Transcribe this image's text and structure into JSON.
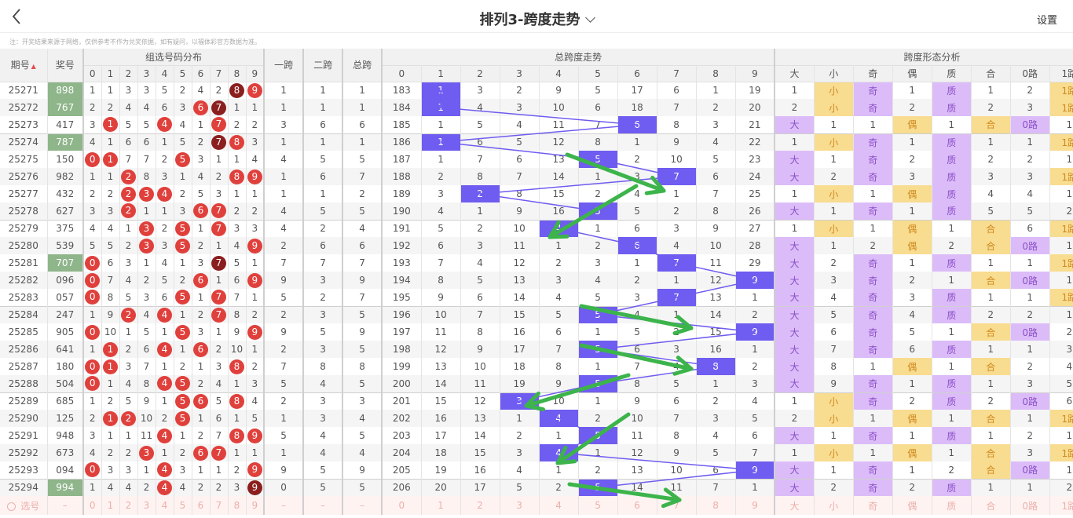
{
  "header": {
    "title": "排列3-跨度走势",
    "settings": "设置",
    "note": "注：开奖结果来源于网络，仅供参考不作为兑奖依据，如有疑问，以福体彩官方数据为准。"
  },
  "columns": {
    "issue": "期号",
    "award": "奖号",
    "dist_group": "组选号码分布",
    "span1": "一跨",
    "span2": "二跨",
    "span": "总跨",
    "trend_group": "总跨度走势",
    "form_group": "跨度形态分析",
    "digits": [
      "0",
      "1",
      "2",
      "3",
      "4",
      "5",
      "6",
      "7",
      "8",
      "9"
    ],
    "forms": [
      "大",
      "小",
      "奇",
      "偶",
      "质",
      "合",
      "0路",
      "1路"
    ]
  },
  "colors": {
    "hit": "#6f5cf0",
    "ball": "#e0403c",
    "ball_double": "#8b1e1e",
    "group3_award": "#8fb58a",
    "form_purple": "#dcbcf8",
    "form_yellow": "#f8dc90",
    "annotation": "#3cb44b"
  },
  "rows": [
    {
      "issue": "25271",
      "award": "898",
      "dist": [
        1,
        1,
        3,
        3,
        5,
        2,
        4,
        2,
        8,
        9
      ],
      "s1": 1,
      "s2": 1,
      "s": 1,
      "trend": [
        183,
        1,
        3,
        2,
        9,
        5,
        17,
        6,
        1,
        19
      ],
      "form": [
        "1",
        "小",
        "奇",
        "1",
        "质",
        "1",
        "2",
        "1路"
      ]
    },
    {
      "issue": "25272",
      "award": "767",
      "dist": [
        2,
        2,
        4,
        4,
        6,
        3,
        6,
        7,
        1,
        1
      ],
      "s1": 1,
      "s2": 1,
      "s": 1,
      "trend": [
        184,
        1,
        4,
        3,
        10,
        6,
        18,
        7,
        2,
        20
      ],
      "form": [
        "2",
        "小",
        "奇",
        "2",
        "质",
        "2",
        "3",
        "1路"
      ]
    },
    {
      "issue": "25273",
      "award": "417",
      "dist": [
        3,
        1,
        5,
        5,
        4,
        4,
        1,
        7,
        2,
        2
      ],
      "s1": 3,
      "s2": 6,
      "s": 6,
      "trend": [
        185,
        1,
        5,
        4,
        11,
        7,
        6,
        8,
        3,
        21
      ],
      "form": [
        "大",
        "1",
        "1",
        "偶",
        "1",
        "合",
        "0路",
        "1"
      ]
    },
    {
      "issue": "25274",
      "award": "787",
      "dist": [
        4,
        1,
        6,
        6,
        1,
        5,
        2,
        7,
        8,
        3
      ],
      "s1": 1,
      "s2": 1,
      "s": 1,
      "trend": [
        186,
        1,
        6,
        5,
        12,
        8,
        1,
        9,
        4,
        22
      ],
      "form": [
        "1",
        "小",
        "奇",
        "1",
        "质",
        "1",
        "1",
        "1路"
      ]
    },
    {
      "issue": "25275",
      "award": "150",
      "dist": [
        0,
        1,
        7,
        7,
        2,
        5,
        3,
        1,
        1,
        4
      ],
      "s1": 4,
      "s2": 5,
      "s": 5,
      "trend": [
        187,
        1,
        7,
        6,
        13,
        5,
        2,
        10,
        5,
        23
      ],
      "form": [
        "大",
        "1",
        "奇",
        "2",
        "质",
        "2",
        "2",
        "1"
      ]
    },
    {
      "issue": "25276",
      "award": "982",
      "dist": [
        1,
        1,
        2,
        8,
        3,
        1,
        4,
        2,
        8,
        9
      ],
      "s1": 1,
      "s2": 6,
      "s": 7,
      "trend": [
        188,
        2,
        8,
        7,
        14,
        1,
        3,
        7,
        6,
        24
      ],
      "form": [
        "大",
        "2",
        "奇",
        "3",
        "质",
        "3",
        "3",
        "1路"
      ]
    },
    {
      "issue": "25277",
      "award": "432",
      "dist": [
        2,
        2,
        2,
        3,
        4,
        2,
        5,
        3,
        1,
        1
      ],
      "s1": 1,
      "s2": 1,
      "s": 2,
      "trend": [
        189,
        3,
        2,
        8,
        15,
        2,
        4,
        1,
        7,
        25
      ],
      "form": [
        "1",
        "小",
        "1",
        "偶",
        "质",
        "4",
        "4",
        "1"
      ]
    },
    {
      "issue": "25278",
      "award": "627",
      "dist": [
        3,
        3,
        2,
        1,
        1,
        3,
        6,
        7,
        2,
        2
      ],
      "s1": 4,
      "s2": 5,
      "s": 5,
      "trend": [
        190,
        4,
        1,
        9,
        16,
        5,
        5,
        2,
        8,
        26
      ],
      "form": [
        "大",
        "1",
        "奇",
        "1",
        "质",
        "5",
        "5",
        "2"
      ]
    },
    {
      "issue": "25279",
      "award": "375",
      "dist": [
        4,
        4,
        1,
        3,
        2,
        5,
        1,
        7,
        3,
        3
      ],
      "s1": 4,
      "s2": 2,
      "s": 4,
      "trend": [
        191,
        5,
        2,
        10,
        4,
        1,
        6,
        3,
        9,
        27
      ],
      "form": [
        "1",
        "小",
        "1",
        "偶",
        "1",
        "合",
        "6",
        "1路"
      ]
    },
    {
      "issue": "25280",
      "award": "539",
      "dist": [
        5,
        5,
        2,
        3,
        3,
        5,
        2,
        1,
        4,
        9
      ],
      "s1": 2,
      "s2": 6,
      "s": 6,
      "trend": [
        192,
        6,
        3,
        11,
        1,
        2,
        6,
        4,
        10,
        28
      ],
      "form": [
        "大",
        "1",
        "2",
        "偶",
        "2",
        "合",
        "0路",
        "1"
      ]
    },
    {
      "issue": "25281",
      "award": "707",
      "dist": [
        0,
        6,
        3,
        1,
        4,
        1,
        3,
        7,
        5,
        1
      ],
      "s1": 7,
      "s2": 7,
      "s": 7,
      "trend": [
        193,
        7,
        4,
        12,
        2,
        3,
        1,
        7,
        11,
        29
      ],
      "form": [
        "大",
        "2",
        "奇",
        "1",
        "质",
        "1",
        "1",
        "1路"
      ]
    },
    {
      "issue": "25282",
      "award": "096",
      "dist": [
        0,
        7,
        4,
        2,
        5,
        2,
        6,
        1,
        6,
        9
      ],
      "s1": 9,
      "s2": 3,
      "s": 9,
      "trend": [
        194,
        8,
        5,
        13,
        3,
        4,
        2,
        1,
        12,
        9
      ],
      "form": [
        "大",
        "3",
        "奇",
        "2",
        "1",
        "合",
        "0路",
        "1"
      ]
    },
    {
      "issue": "25283",
      "award": "057",
      "dist": [
        0,
        8,
        5,
        3,
        6,
        5,
        1,
        7,
        7,
        1
      ],
      "s1": 5,
      "s2": 2,
      "s": 7,
      "trend": [
        195,
        9,
        6,
        14,
        4,
        5,
        3,
        7,
        13,
        1
      ],
      "form": [
        "大",
        "4",
        "奇",
        "3",
        "质",
        "1",
        "1",
        "1路"
      ]
    },
    {
      "issue": "25284",
      "award": "247",
      "dist": [
        1,
        9,
        2,
        4,
        4,
        1,
        2,
        7,
        8,
        2
      ],
      "s1": 2,
      "s2": 3,
      "s": 5,
      "trend": [
        196,
        10,
        7,
        15,
        5,
        5,
        4,
        1,
        14,
        2
      ],
      "form": [
        "大",
        "5",
        "奇",
        "4",
        "质",
        "2",
        "2",
        "1"
      ]
    },
    {
      "issue": "25285",
      "award": "905",
      "dist": [
        0,
        10,
        1,
        5,
        1,
        5,
        3,
        1,
        9,
        9
      ],
      "s1": 9,
      "s2": 5,
      "s": 9,
      "trend": [
        197,
        11,
        8,
        16,
        6,
        1,
        5,
        2,
        15,
        9
      ],
      "form": [
        "大",
        "6",
        "奇",
        "5",
        "1",
        "合",
        "0路",
        "2"
      ]
    },
    {
      "issue": "25286",
      "award": "641",
      "dist": [
        1,
        1,
        2,
        6,
        4,
        1,
        6,
        2,
        10,
        1
      ],
      "s1": 2,
      "s2": 3,
      "s": 5,
      "trend": [
        198,
        12,
        9,
        17,
        7,
        5,
        6,
        3,
        16,
        1
      ],
      "form": [
        "大",
        "7",
        "奇",
        "6",
        "质",
        "1",
        "1",
        "3"
      ]
    },
    {
      "issue": "25287",
      "award": "180",
      "dist": [
        0,
        1,
        3,
        7,
        1,
        2,
        1,
        3,
        8,
        2
      ],
      "s1": 7,
      "s2": 8,
      "s": 8,
      "trend": [
        199,
        13,
        10,
        18,
        8,
        1,
        7,
        4,
        8,
        2
      ],
      "form": [
        "大",
        "8",
        "1",
        "偶",
        "1",
        "合",
        "2",
        "4"
      ]
    },
    {
      "issue": "25288",
      "award": "504",
      "dist": [
        0,
        1,
        4,
        8,
        4,
        5,
        2,
        4,
        1,
        3
      ],
      "s1": 5,
      "s2": 4,
      "s": 5,
      "trend": [
        200,
        14,
        11,
        19,
        9,
        5,
        8,
        5,
        1,
        3
      ],
      "form": [
        "大",
        "9",
        "奇",
        "1",
        "质",
        "1",
        "3",
        "5"
      ]
    },
    {
      "issue": "25289",
      "award": "685",
      "dist": [
        1,
        2,
        5,
        9,
        1,
        5,
        6,
        5,
        8,
        4
      ],
      "s1": 2,
      "s2": 3,
      "s": 3,
      "trend": [
        201,
        15,
        12,
        3,
        10,
        1,
        9,
        6,
        2,
        4
      ],
      "form": [
        "1",
        "小",
        "奇",
        "2",
        "质",
        "2",
        "0路",
        "6"
      ]
    },
    {
      "issue": "25290",
      "award": "125",
      "dist": [
        2,
        1,
        2,
        10,
        2,
        5,
        1,
        6,
        1,
        5
      ],
      "s1": 1,
      "s2": 3,
      "s": 4,
      "trend": [
        202,
        16,
        13,
        1,
        4,
        2,
        10,
        7,
        3,
        5
      ],
      "form": [
        "2",
        "小",
        "1",
        "偶",
        "1",
        "合",
        "1",
        "1路"
      ]
    },
    {
      "issue": "25291",
      "award": "948",
      "dist": [
        3,
        1,
        1,
        11,
        4,
        1,
        2,
        7,
        8,
        9
      ],
      "s1": 5,
      "s2": 4,
      "s": 5,
      "trend": [
        203,
        17,
        14,
        2,
        1,
        5,
        11,
        8,
        4,
        6
      ],
      "form": [
        "大",
        "1",
        "奇",
        "1",
        "质",
        "1",
        "2",
        "1"
      ]
    },
    {
      "issue": "25292",
      "award": "673",
      "dist": [
        4,
        2,
        2,
        3,
        1,
        2,
        6,
        7,
        1,
        1
      ],
      "s1": 1,
      "s2": 4,
      "s": 4,
      "trend": [
        204,
        18,
        15,
        3,
        4,
        1,
        12,
        9,
        5,
        7
      ],
      "form": [
        "1",
        "小",
        "1",
        "偶",
        "1",
        "合",
        "3",
        "1路"
      ]
    },
    {
      "issue": "25293",
      "award": "094",
      "dist": [
        0,
        3,
        3,
        1,
        4,
        3,
        1,
        1,
        2,
        9
      ],
      "s1": 9,
      "s2": 5,
      "s": 9,
      "trend": [
        205,
        19,
        16,
        4,
        1,
        2,
        13,
        10,
        6,
        9
      ],
      "form": [
        "大",
        "1",
        "奇",
        "1",
        "2",
        "合",
        "0路",
        "1"
      ]
    },
    {
      "issue": "25294",
      "award": "994",
      "dist": [
        1,
        4,
        4,
        2,
        4,
        4,
        2,
        2,
        3,
        9
      ],
      "s1": 0,
      "s2": 5,
      "s": 5,
      "trend": [
        206,
        20,
        17,
        5,
        2,
        5,
        14,
        11,
        7,
        1
      ],
      "form": [
        "大",
        "2",
        "奇",
        "2",
        "质",
        "1",
        "1",
        "2"
      ]
    }
  ],
  "pick_row": {
    "label": "选号",
    "dash": "–"
  }
}
